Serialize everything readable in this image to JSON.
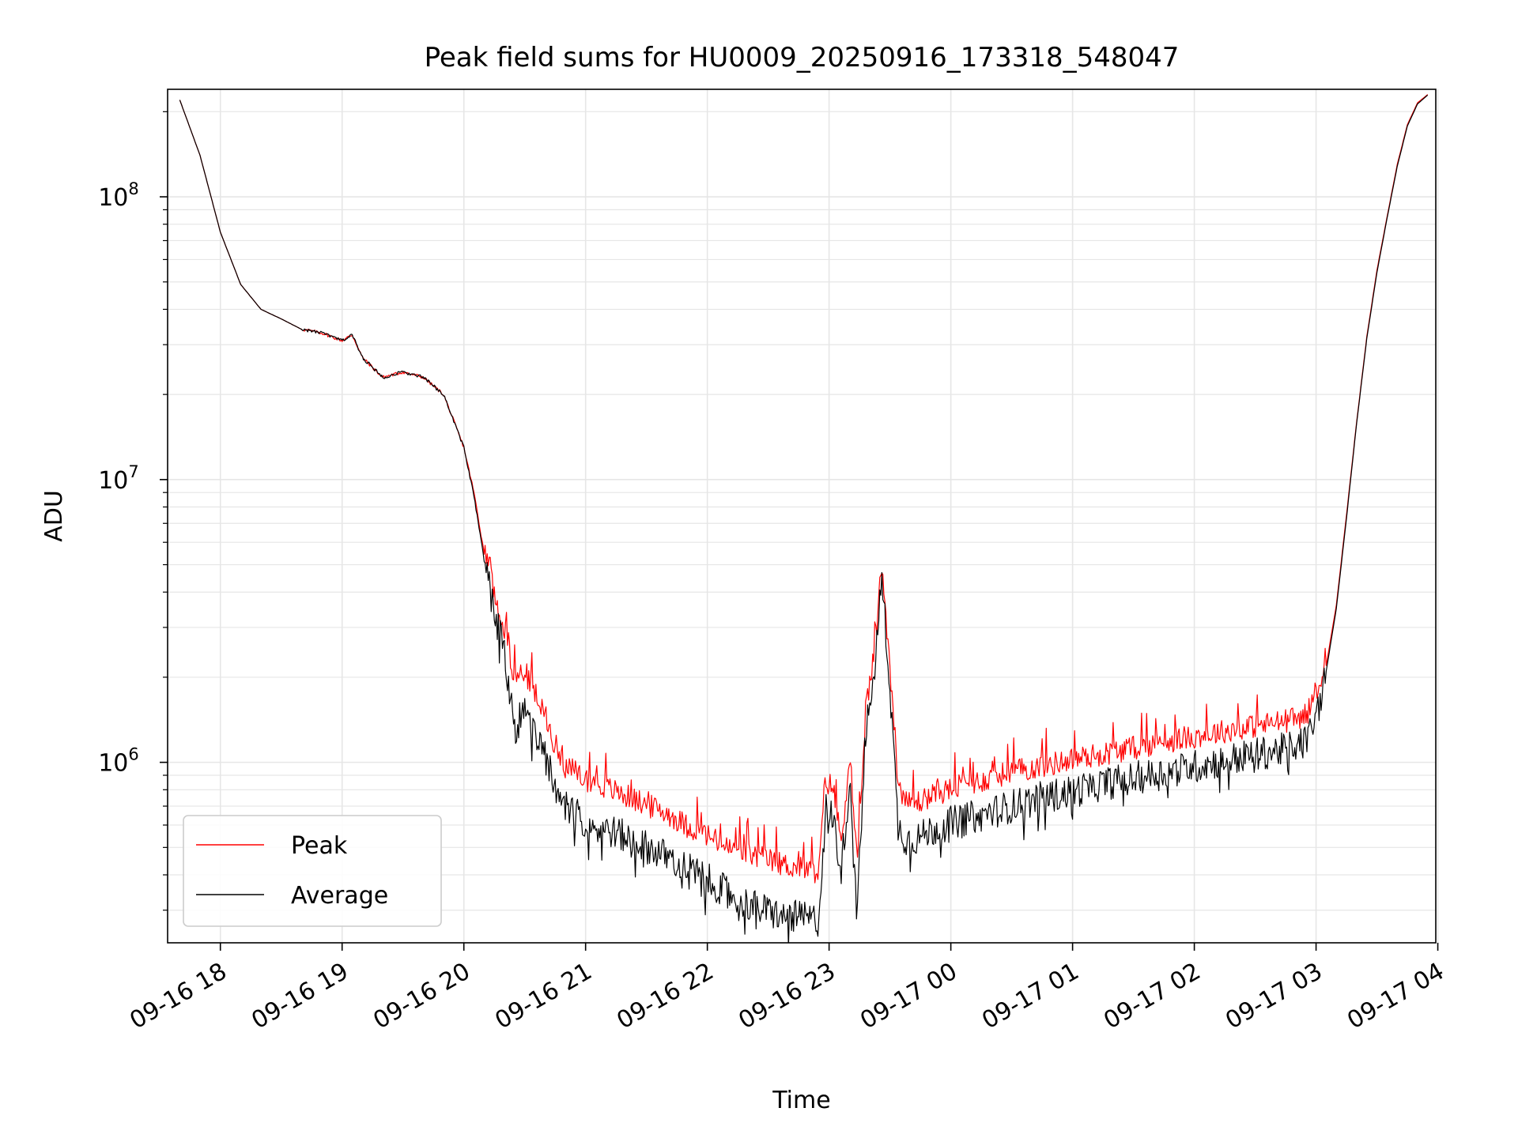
{
  "chart_data": {
    "type": "line",
    "title": "Peak field sums for HU0009_20250916_173318_548047",
    "xlabel": "Time",
    "ylabel": "ADU",
    "y_scale": "log",
    "ylim": [
      230000,
      240000000
    ],
    "xlim": [
      "09-16 17:34",
      "09-17 03:59"
    ],
    "x_tick_labels": [
      "09-16 18",
      "09-16 19",
      "09-16 20",
      "09-16 21",
      "09-16 22",
      "09-16 23",
      "09-17 00",
      "09-17 01",
      "09-17 02",
      "09-17 03",
      "09-17 04"
    ],
    "y_tick_labels": [
      {
        "value": 1000000,
        "base": "10",
        "exp": "6"
      },
      {
        "value": 10000000,
        "base": "10",
        "exp": "7"
      },
      {
        "value": 100000000,
        "base": "10",
        "exp": "8"
      }
    ],
    "grid": true,
    "legend_position": "lower-left",
    "colors": {
      "peak": "#ff0000",
      "average": "#000000"
    },
    "series": [
      {
        "name": "Peak",
        "x": [
          "09-16 17:40",
          "09-16 17:50",
          "09-16 18:00",
          "09-16 18:10",
          "09-16 18:20",
          "09-16 18:30",
          "09-16 18:40",
          "09-16 18:50",
          "09-16 19:00",
          "09-16 19:05",
          "09-16 19:10",
          "09-16 19:20",
          "09-16 19:30",
          "09-16 19:40",
          "09-16 19:50",
          "09-16 20:00",
          "09-16 20:05",
          "09-16 20:10",
          "09-16 20:15",
          "09-16 20:20",
          "09-16 20:25",
          "09-16 20:30",
          "09-16 20:35",
          "09-16 20:40",
          "09-16 20:45",
          "09-16 20:50",
          "09-16 21:00",
          "09-16 21:10",
          "09-16 21:20",
          "09-16 21:30",
          "09-16 21:40",
          "09-16 21:50",
          "09-16 22:00",
          "09-16 22:10",
          "09-16 22:20",
          "09-16 22:30",
          "09-16 22:40",
          "09-16 22:55",
          "09-16 22:58",
          "09-16 23:02",
          "09-16 23:06",
          "09-16 23:10",
          "09-16 23:14",
          "09-16 23:18",
          "09-16 23:22",
          "09-16 23:26",
          "09-16 23:30",
          "09-16 23:34",
          "09-16 23:38",
          "09-16 23:45",
          "09-16 23:50",
          "09-17 00:00",
          "09-17 00:15",
          "09-17 00:30",
          "09-17 00:45",
          "09-17 01:00",
          "09-17 01:15",
          "09-17 01:30",
          "09-17 01:45",
          "09-17 02:00",
          "09-17 02:15",
          "09-17 02:30",
          "09-17 02:45",
          "09-17 02:55",
          "09-17 03:00",
          "09-17 03:05",
          "09-17 03:10",
          "09-17 03:15",
          "09-17 03:20",
          "09-17 03:25",
          "09-17 03:30",
          "09-17 03:35",
          "09-17 03:40",
          "09-17 03:45",
          "09-17 03:50",
          "09-17 03:55"
        ],
        "y": [
          220000000,
          140000000,
          75000000,
          49000000,
          40000000,
          37000000,
          34000000,
          33000000,
          31000000,
          32500000,
          27000000,
          23000000,
          24000000,
          23000000,
          20000000,
          13000000,
          9000000,
          5500000,
          3600000,
          2700000,
          1800000,
          1900000,
          1600000,
          1300000,
          1050000,
          880000,
          790000,
          740000,
          690000,
          640000,
          600000,
          540000,
          500000,
          450000,
          430000,
          410000,
          390000,
          370000,
          780000,
          740000,
          470000,
          940000,
          380000,
          1400000,
          2100000,
          4600000,
          2000000,
          780000,
          650000,
          660000,
          690000,
          730000,
          780000,
          840000,
          880000,
          930000,
          970000,
          1020000,
          1070000,
          1120000,
          1170000,
          1220000,
          1270000,
          1330000,
          1550000,
          2200000,
          3600000,
          7500000,
          16000000,
          32000000,
          55000000,
          85000000,
          130000000,
          180000000,
          215000000,
          230000000
        ]
      },
      {
        "name": "Average",
        "x": [
          "09-16 17:40",
          "09-16 17:50",
          "09-16 18:00",
          "09-16 18:10",
          "09-16 18:20",
          "09-16 18:30",
          "09-16 18:40",
          "09-16 18:50",
          "09-16 19:00",
          "09-16 19:05",
          "09-16 19:10",
          "09-16 19:20",
          "09-16 19:30",
          "09-16 19:40",
          "09-16 19:50",
          "09-16 20:00",
          "09-16 20:05",
          "09-16 20:10",
          "09-16 20:15",
          "09-16 20:20",
          "09-16 20:25",
          "09-16 20:30",
          "09-16 20:35",
          "09-16 20:40",
          "09-16 20:45",
          "09-16 20:50",
          "09-16 21:00",
          "09-16 21:10",
          "09-16 21:20",
          "09-16 21:30",
          "09-16 21:40",
          "09-16 21:50",
          "09-16 22:00",
          "09-16 22:10",
          "09-16 22:20",
          "09-16 22:30",
          "09-16 22:40",
          "09-16 22:55",
          "09-16 22:58",
          "09-16 23:02",
          "09-16 23:06",
          "09-16 23:10",
          "09-16 23:14",
          "09-16 23:18",
          "09-16 23:22",
          "09-16 23:26",
          "09-16 23:30",
          "09-16 23:34",
          "09-16 23:38",
          "09-16 23:45",
          "09-16 23:50",
          "09-17 00:00",
          "09-17 00:15",
          "09-17 00:30",
          "09-17 00:45",
          "09-17 01:00",
          "09-17 01:15",
          "09-17 01:30",
          "09-17 01:45",
          "09-17 02:00",
          "09-17 02:15",
          "09-17 02:30",
          "09-17 02:45",
          "09-17 02:55",
          "09-17 03:00",
          "09-17 03:05",
          "09-17 03:10",
          "09-17 03:15",
          "09-17 03:20",
          "09-17 03:25",
          "09-17 03:30",
          "09-17 03:35",
          "09-17 03:40",
          "09-17 03:45",
          "09-17 03:50",
          "09-17 03:55"
        ],
        "y": [
          220000000,
          140000000,
          75000000,
          49000000,
          40000000,
          37000000,
          34000000,
          33000000,
          31000000,
          32500000,
          27000000,
          23000000,
          24000000,
          23000000,
          20000000,
          13000000,
          8700000,
          5200000,
          3400000,
          2500000,
          1300000,
          1600000,
          1300000,
          1050000,
          850000,
          700000,
          630000,
          590000,
          550000,
          510000,
          470000,
          430000,
          390000,
          350000,
          320000,
          300000,
          290000,
          280000,
          700000,
          650000,
          420000,
          850000,
          340000,
          1300000,
          2000000,
          4500000,
          1900000,
          600000,
          540000,
          550000,
          580000,
          620000,
          660000,
          710000,
          760000,
          800000,
          850000,
          890000,
          930000,
          980000,
          1030000,
          1080000,
          1130000,
          1200000,
          1450000,
          2100000,
          3500000,
          7300000,
          15800000,
          31500000,
          54000000,
          84000000,
          128000000,
          178000000,
          213000000,
          229000000
        ]
      }
    ]
  }
}
